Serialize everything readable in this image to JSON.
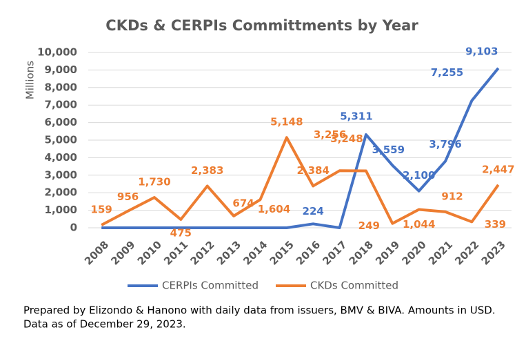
{
  "chart_data": {
    "type": "line",
    "title": "CKDs & CERPIs Committments by Year",
    "y_label": "Millions",
    "categories": [
      "2008",
      "2009",
      "2010",
      "2011",
      "2012",
      "2013",
      "2014",
      "2015",
      "2016",
      "2017",
      "2018",
      "2019",
      "2020",
      "2021",
      "2022",
      "2023"
    ],
    "series": [
      {
        "name": "CERPIs Committed",
        "color": "#4472c4",
        "values": [
          0,
          0,
          0,
          0,
          0,
          0,
          0,
          0,
          224,
          0,
          5311,
          3559,
          2100,
          3796,
          7255,
          9103
        ],
        "value_labels": [
          null,
          null,
          null,
          null,
          null,
          null,
          null,
          null,
          "224",
          null,
          "5,311",
          "3,559",
          "2,100",
          "3,796",
          "7,255",
          "9,103"
        ]
      },
      {
        "name": "CKDs Committed",
        "color": "#ed7d31",
        "values": [
          159,
          956,
          1730,
          475,
          2383,
          674,
          1604,
          5148,
          2384,
          3256,
          3248,
          249,
          1044,
          912,
          339,
          2447
        ],
        "value_labels": [
          "159",
          "956",
          "1,730",
          "475",
          "2,383",
          "674",
          "1,604",
          "5,148",
          "2,384",
          "3,256",
          "3,248",
          "249",
          "1,044",
          "912",
          "339",
          "2,447"
        ]
      }
    ],
    "ylim": [
      0,
      10000
    ],
    "yticks": [
      0,
      {
        "value": 1000,
        "label": "1,000"
      },
      {
        "value": 2000,
        "label": "2,000"
      },
      {
        "value": 3000,
        "label": "3,000"
      },
      {
        "value": 4000,
        "label": "4,000"
      },
      {
        "value": 5000,
        "label": "5,000"
      },
      {
        "value": 6000,
        "label": "6,000"
      },
      {
        "value": 7000,
        "label": "7,000"
      },
      {
        "value": 8000,
        "label": "8,000"
      },
      {
        "value": 9000,
        "label": "9,000"
      },
      {
        "value": 10000,
        "label": "10,000"
      }
    ],
    "grid": true,
    "note": [
      "Prepared by Elizondo & Hanono with daily data from issuers, BMV & BIVA. Amounts in USD.",
      "Data as of December 29, 2023."
    ]
  }
}
